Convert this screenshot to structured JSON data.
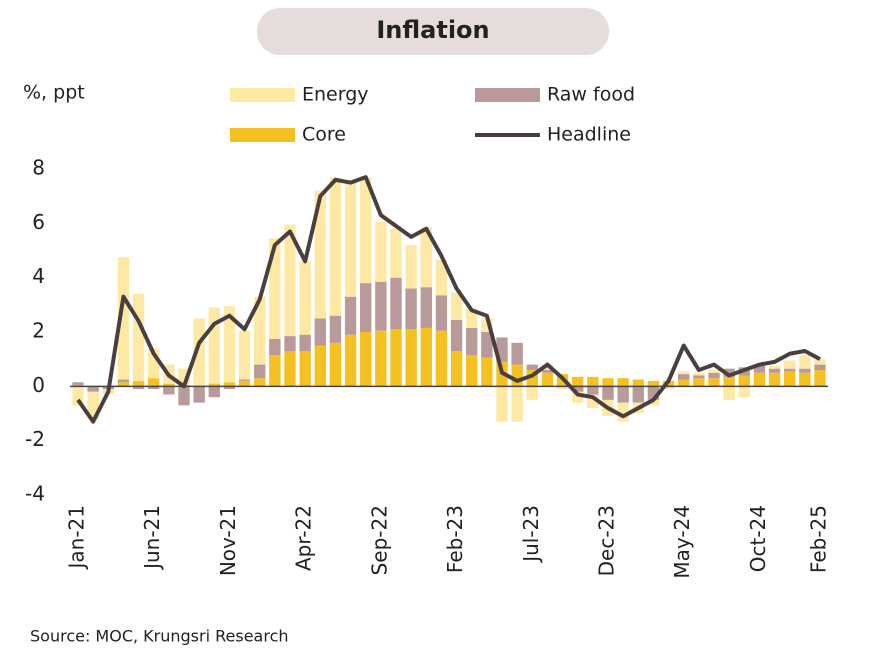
{
  "chart_data": {
    "type": "bar",
    "stacked": true,
    "title": "Inflation",
    "y_label": "%, ppt",
    "source": "Source: MOC, Krungsri Research",
    "categories": [
      "Jan-21",
      null,
      null,
      null,
      null,
      "Jun-21",
      null,
      null,
      null,
      null,
      "Nov-21",
      null,
      null,
      null,
      null,
      "Apr-22",
      null,
      null,
      null,
      null,
      "Sep-22",
      null,
      null,
      null,
      null,
      "Feb-23",
      null,
      null,
      null,
      null,
      "Jul-23",
      null,
      null,
      null,
      null,
      "Dec-23",
      null,
      null,
      null,
      null,
      "May-24",
      null,
      null,
      null,
      null,
      "Oct-24",
      null,
      null,
      null,
      "Feb-25"
    ],
    "series": [
      {
        "name": "Energy",
        "color": "#fde8a4",
        "values": [
          -0.7,
          -1.0,
          -0.2,
          4.5,
          3.2,
          1.1,
          0.7,
          0.6,
          2.5,
          2.8,
          2.8,
          1.8,
          2.5,
          3.7,
          4.1,
          2.7,
          4.7,
          5.1,
          4.2,
          3.9,
          2.2,
          1.8,
          1.6,
          2.2,
          1.3,
          1.0,
          0.7,
          0.5,
          -1.3,
          -1.3,
          -0.5,
          0.2,
          -0.1,
          -0.4,
          -0.5,
          -0.6,
          -0.7,
          -0.4,
          -0.2,
          -0.1,
          0.1,
          0.1,
          0.1,
          -0.5,
          -0.4,
          0.0,
          0.1,
          0.3,
          0.5,
          0.2
        ]
      },
      {
        "name": "Raw food",
        "color": "#b99a9a",
        "values": [
          0.1,
          -0.2,
          -0.1,
          0.1,
          -0.1,
          -0.1,
          -0.3,
          -0.7,
          -0.6,
          -0.4,
          -0.1,
          0.05,
          0.5,
          0.6,
          0.55,
          0.6,
          1.0,
          1.0,
          1.4,
          1.8,
          1.8,
          1.9,
          1.5,
          1.5,
          1.3,
          1.15,
          1.0,
          0.95,
          0.9,
          0.8,
          0.2,
          0.1,
          0.0,
          -0.2,
          -0.3,
          -0.5,
          -0.6,
          -0.6,
          -0.5,
          0.0,
          0.2,
          0.1,
          0.2,
          0.3,
          0.3,
          0.3,
          0.15,
          0.1,
          0.15,
          0.2
        ]
      },
      {
        "name": "Core",
        "color": "#f5c022",
        "values": [
          0.05,
          0.0,
          0.0,
          0.15,
          0.2,
          0.3,
          0.1,
          0.05,
          0.0,
          0.1,
          0.15,
          0.2,
          0.3,
          1.15,
          1.3,
          1.3,
          1.5,
          1.6,
          1.9,
          2.0,
          2.05,
          2.1,
          2.1,
          2.15,
          2.05,
          1.3,
          1.15,
          1.05,
          0.9,
          0.8,
          0.6,
          0.5,
          0.45,
          0.35,
          0.35,
          0.3,
          0.3,
          0.25,
          0.2,
          0.2,
          0.25,
          0.3,
          0.3,
          0.35,
          0.4,
          0.5,
          0.5,
          0.55,
          0.5,
          0.6
        ]
      },
      {
        "name": "Headline",
        "type": "line",
        "color": "#4a3f3f",
        "values": [
          -0.5,
          -1.3,
          -0.2,
          3.3,
          2.4,
          1.2,
          0.4,
          0.0,
          1.6,
          2.3,
          2.6,
          2.1,
          3.2,
          5.2,
          5.7,
          4.6,
          7.0,
          7.6,
          7.5,
          7.7,
          6.3,
          5.9,
          5.5,
          5.8,
          4.8,
          3.6,
          2.8,
          2.6,
          0.5,
          0.2,
          0.4,
          0.8,
          0.3,
          -0.3,
          -0.4,
          -0.8,
          -1.1,
          -0.8,
          -0.5,
          0.2,
          1.5,
          0.6,
          0.8,
          0.4,
          0.6,
          0.8,
          0.9,
          1.2,
          1.3,
          1.0
        ]
      }
    ],
    "ylim": [
      -4,
      8
    ],
    "yticks": [
      -4,
      -2,
      0,
      2,
      4,
      6,
      8
    ],
    "grid": false
  }
}
